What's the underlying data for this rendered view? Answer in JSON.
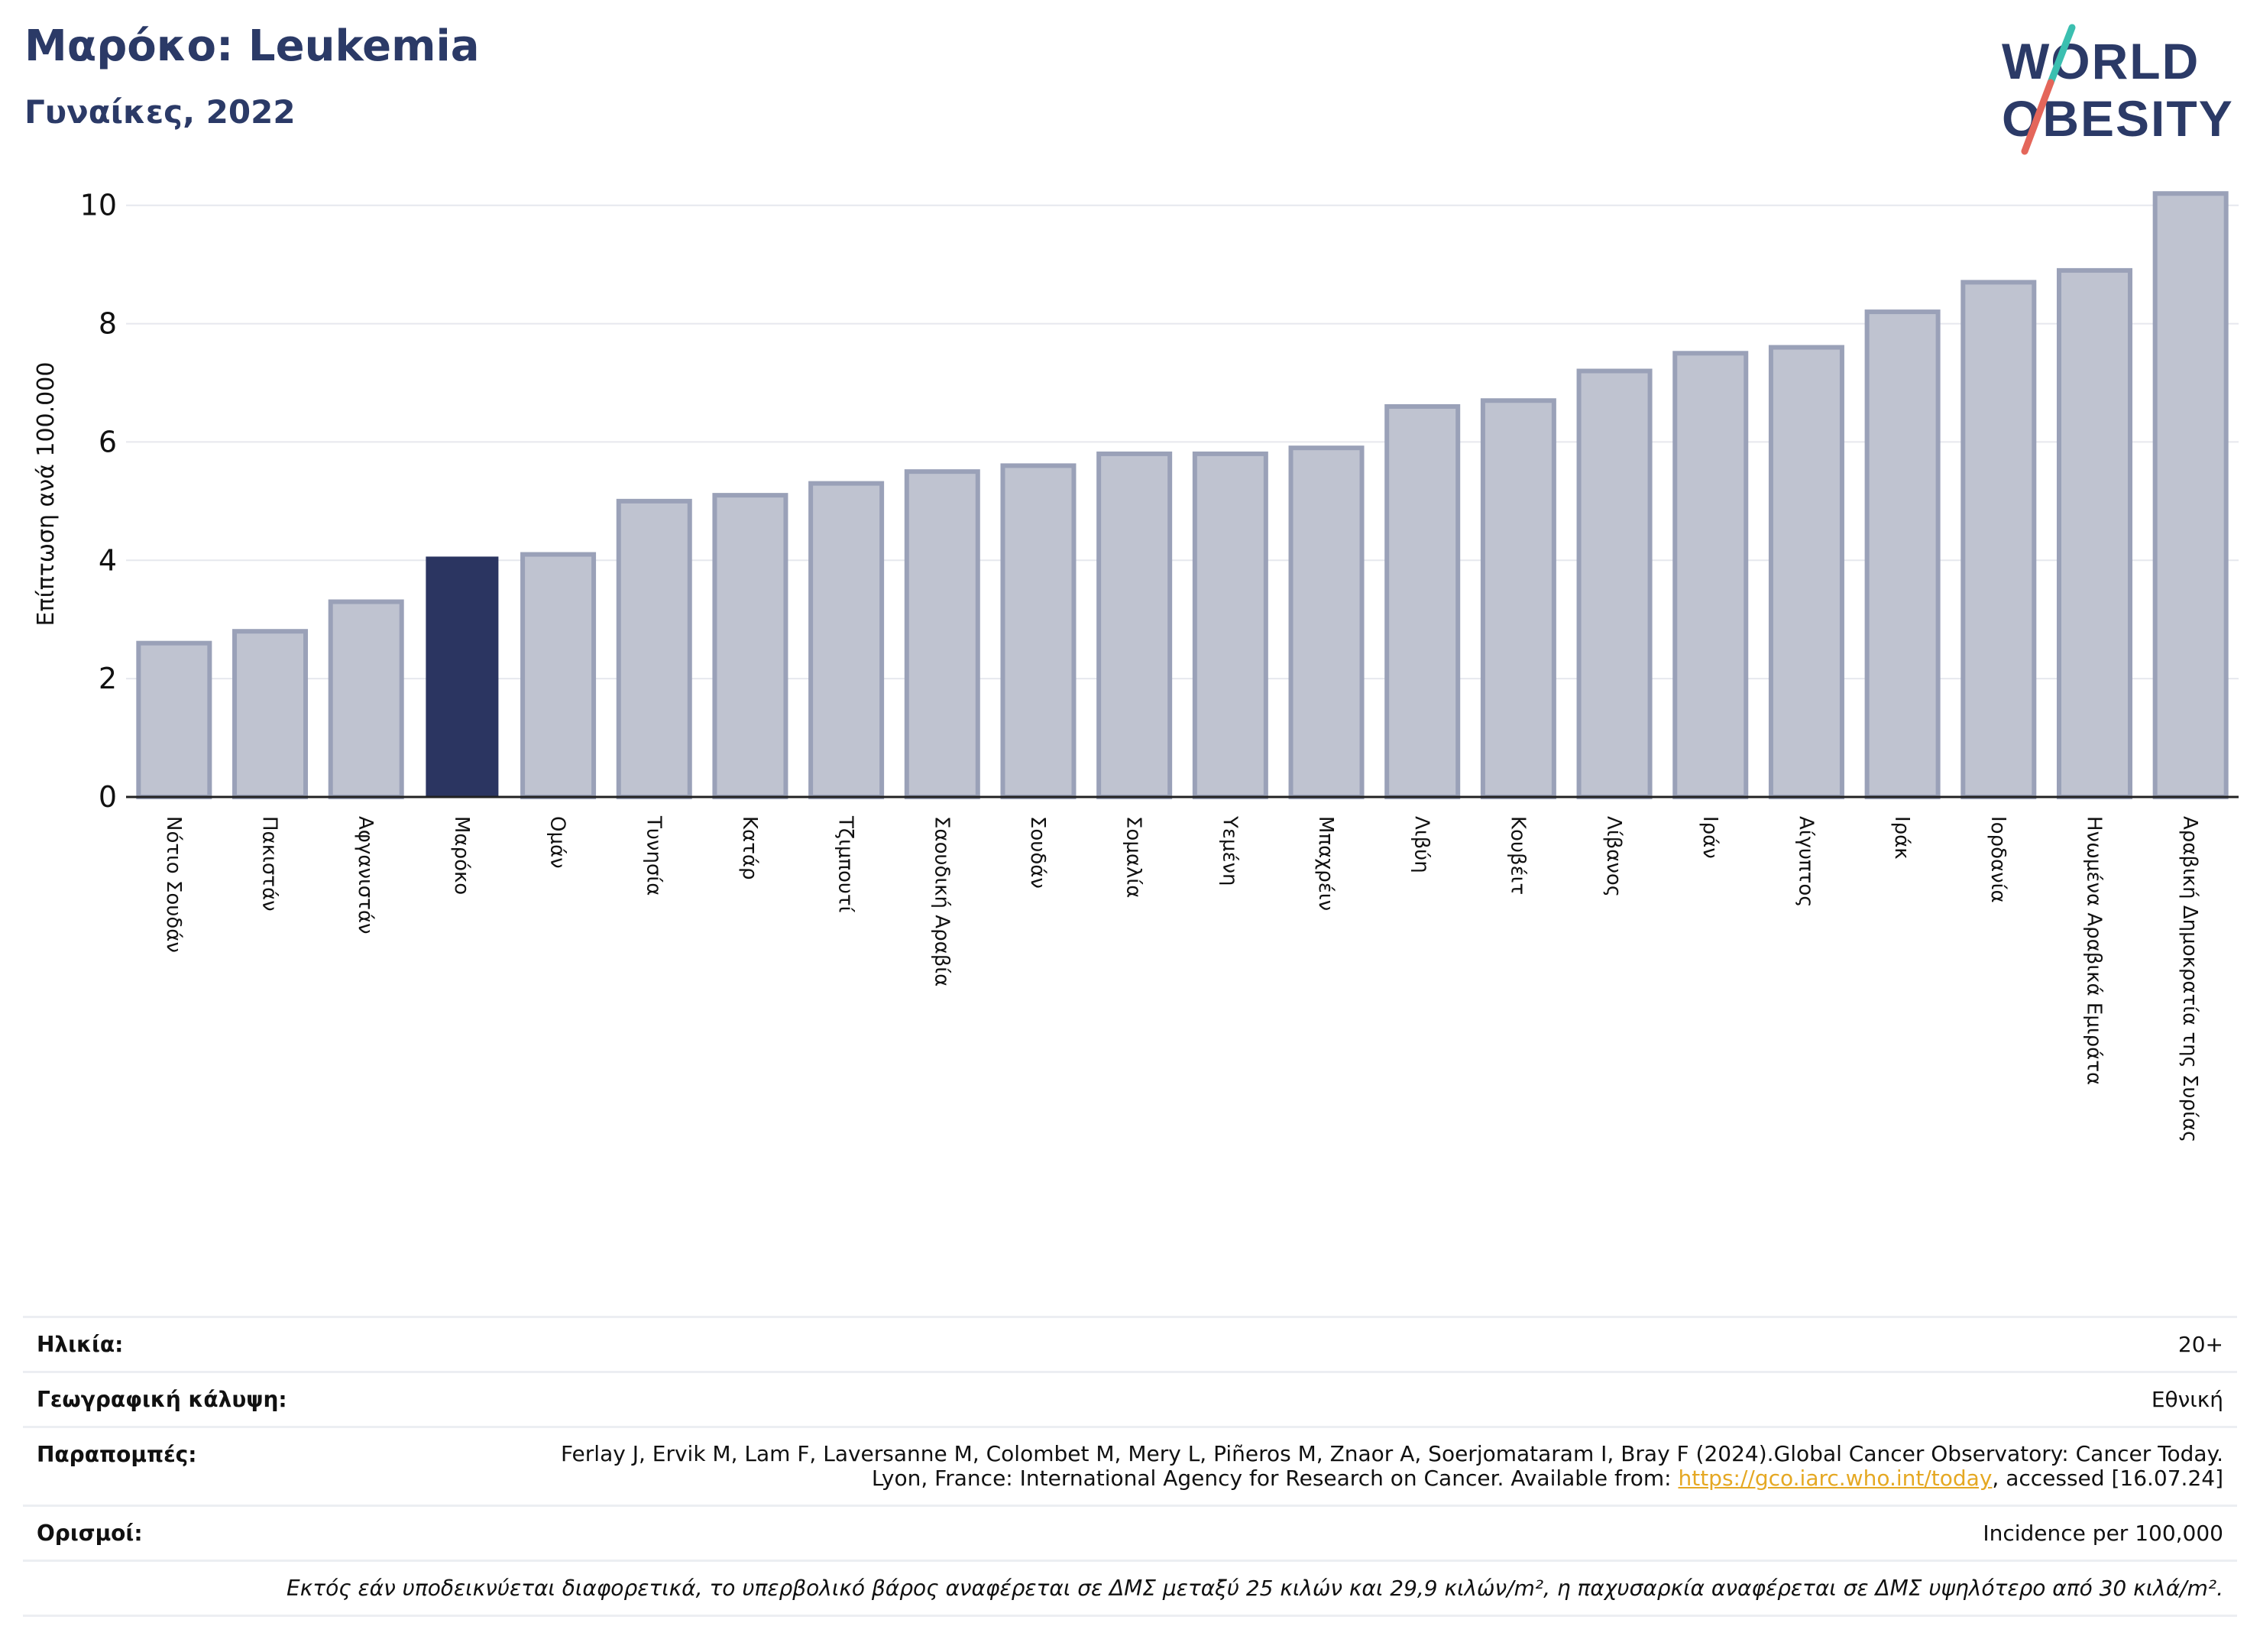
{
  "header": {
    "title": "Μαρόκο: Leukemia",
    "subtitle": "Γυναίκες, 2022"
  },
  "logo": {
    "line1": "WORLD",
    "line2": "OBESITY"
  },
  "colors": {
    "highlight": "#2b3561",
    "bar": "#bfc3d0",
    "bar_stroke": "#9aa1b8",
    "title": "#2b3a67",
    "logo_teal": "#3bbfb0",
    "logo_red": "#e4665a"
  },
  "chart_data": {
    "type": "bar",
    "ylabel": "Επίπτωση ανά 100.000",
    "ylim": [
      0,
      10.5
    ],
    "yticks": [
      0,
      2,
      4,
      6,
      8,
      10
    ],
    "grid": true,
    "highlight": "Μαρόκο",
    "categories": [
      "Νότιο Σουδάν",
      "Πακιστάν",
      "Αφγανιστάν",
      "Μαρόκο",
      "Ομάν",
      "Τυνησία",
      "Κατάρ",
      "Τζιμπουτί",
      "Σαουδική Αραβία",
      "Σουδάν",
      "Σομαλία",
      "Υεμένη",
      "Μπαχρέιν",
      "Λιβύη",
      "Κουβέιτ",
      "Λίβανος",
      "Ιράν",
      "Αίγυπτος",
      "Ιράκ",
      "Ιορδανία",
      "Ηνωμένα Αραβικά Εμιράτα",
      "Αραβική Δημοκρατία της Συρίας"
    ],
    "values": [
      2.6,
      2.8,
      3.3,
      4.05,
      4.1,
      5.0,
      5.1,
      5.3,
      5.5,
      5.6,
      5.8,
      5.8,
      5.9,
      6.6,
      6.7,
      7.2,
      7.5,
      7.6,
      8.2,
      8.7,
      8.9,
      10.2
    ]
  },
  "meta": {
    "age_label": "Ηλικία:",
    "age_value": "20+",
    "coverage_label": "Γεωγραφική κάλυψη:",
    "coverage_value": "Εθνική",
    "refs_label": "Παραπομπές:",
    "refs_text_before": "Ferlay J, Ervik M, Lam F, Laversanne M, Colombet M, Mery L, Piñeros M, Znaor A, Soerjomataram I, Bray F (2024).Global Cancer Observatory: Cancer Today. Lyon, France: International Agency for Research on Cancer. Available from: ",
    "refs_link": "https://gco.iarc.who.int/today",
    "refs_text_after": ", accessed [16.07.24]",
    "definitions_label": "Ορισμοί:",
    "definitions_value": "Incidence per 100,000",
    "footnote": "Εκτός εάν υποδεικνύεται διαφορετικά, το υπερβολικό βάρος αναφέρεται σε ΔΜΣ μεταξύ 25 κιλών και 29,9 κιλών/m², η παχυσαρκία αναφέρεται σε ΔΜΣ υψηλότερο από 30 κιλά/m²."
  }
}
